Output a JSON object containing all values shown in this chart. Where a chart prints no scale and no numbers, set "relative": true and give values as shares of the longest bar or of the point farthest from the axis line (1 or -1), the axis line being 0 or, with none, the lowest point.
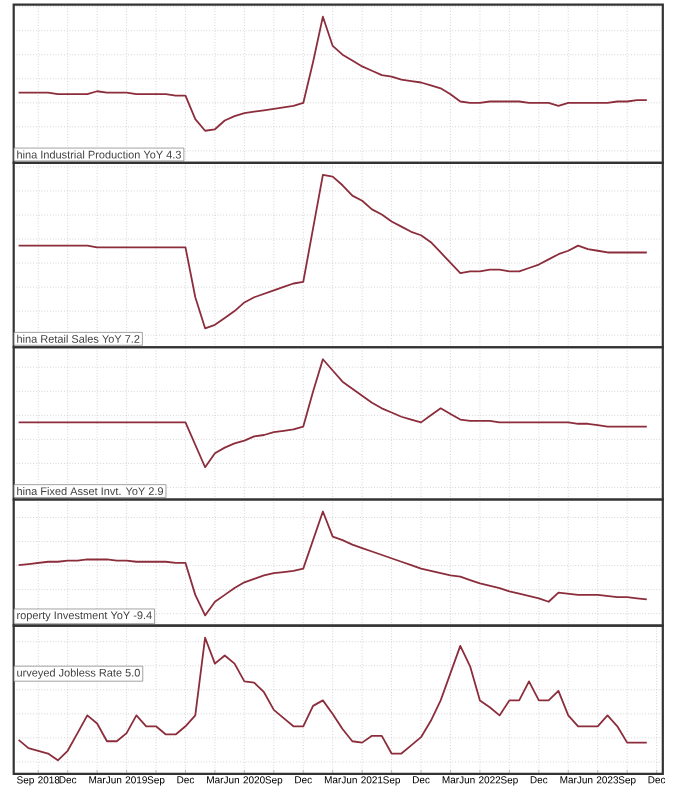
{
  "chart_data": [
    {
      "type": "line",
      "title": "hina Industrial Production YoY 4.3",
      "relative": true,
      "grid": true,
      "categories": [
        null,
        null,
        null,
        null,
        null,
        null,
        null,
        null,
        null,
        null,
        null,
        null,
        null,
        null,
        null,
        null,
        null,
        null,
        null,
        null,
        null,
        null,
        null,
        null,
        null,
        null,
        null,
        null,
        null,
        null,
        null,
        null,
        null,
        null,
        null,
        null,
        null,
        null,
        null,
        null,
        null,
        null,
        null,
        null,
        null,
        null,
        null,
        null,
        null,
        null,
        null,
        null,
        null,
        null,
        null,
        null,
        null,
        null,
        null,
        null,
        null,
        null,
        null,
        null,
        null
      ],
      "series": [
        {
          "color": "#8c2d3c",
          "values": [
            0.48,
            0.48,
            0.48,
            0.48,
            0.47,
            0.47,
            0.47,
            0.47,
            0.49,
            0.48,
            0.48,
            0.48,
            0.47,
            0.47,
            0.47,
            0.47,
            0.46,
            0.46,
            0.3,
            0.22,
            0.23,
            0.29,
            0.32,
            0.34,
            0.35,
            0.36,
            0.37,
            0.38,
            0.39,
            0.41,
            0.69,
            1,
            0.8,
            0.74,
            0.7,
            0.66,
            0.63,
            0.6,
            0.59,
            0.57,
            0.56,
            0.55,
            0.53,
            0.51,
            0.47,
            0.42,
            0.41,
            0.41,
            0.42,
            0.42,
            0.42,
            0.42,
            0.41,
            0.41,
            0.41,
            0.39,
            0.41,
            0.41,
            0.41,
            0.41,
            0.41,
            0.42,
            0.42,
            0.43,
            0.43
          ]
        }
      ]
    },
    {
      "type": "line",
      "title": "hina Retail Sales YoY 7.2",
      "relative": true,
      "grid": true,
      "categories": [
        null,
        null,
        null,
        null,
        null,
        null,
        null,
        null,
        null,
        null,
        null,
        null,
        null,
        null,
        null,
        null,
        null,
        null,
        null,
        null,
        null,
        null,
        null,
        null,
        null,
        null,
        null,
        null,
        null,
        null,
        null,
        null,
        null,
        null,
        null,
        null,
        null,
        null,
        null,
        null,
        null,
        null,
        null,
        null,
        null,
        null,
        null,
        null,
        null,
        null,
        null,
        null,
        null,
        null,
        null,
        null,
        null,
        null,
        null,
        null,
        null,
        null,
        null,
        null,
        null
      ],
      "series": [
        {
          "color": "#8c2d3c",
          "values": [
            0.59,
            0.59,
            0.59,
            0.59,
            0.59,
            0.59,
            0.59,
            0.59,
            0.58,
            0.58,
            0.58,
            0.58,
            0.58,
            0.58,
            0.58,
            0.58,
            0.58,
            0.58,
            0.29,
            0.11,
            0.13,
            0.17,
            0.21,
            0.26,
            0.29,
            0.31,
            0.33,
            0.35,
            0.37,
            0.38,
            0.69,
            1,
            0.99,
            0.94,
            0.88,
            0.85,
            0.8,
            0.77,
            0.73,
            0.7,
            0.67,
            0.65,
            0.61,
            0.55,
            0.49,
            0.43,
            0.44,
            0.44,
            0.45,
            0.45,
            0.44,
            0.44,
            0.46,
            0.48,
            0.51,
            0.54,
            0.56,
            0.59,
            0.57,
            0.56,
            0.55,
            0.55,
            0.55,
            0.55,
            0.55
          ]
        }
      ]
    },
    {
      "type": "line",
      "title": "hina Fixed Asset Invt. YoY 2.9",
      "relative": true,
      "grid": true,
      "categories": [
        null,
        null,
        null,
        null,
        null,
        null,
        null,
        null,
        null,
        null,
        null,
        null,
        null,
        null,
        null,
        null,
        null,
        null,
        null,
        null,
        null,
        null,
        null,
        null,
        null,
        null,
        null,
        null,
        null,
        null,
        null,
        null,
        null,
        null,
        null,
        null,
        null,
        null,
        null,
        null,
        null,
        null,
        null,
        null,
        null,
        null,
        null,
        null,
        null,
        null,
        null,
        null,
        null,
        null,
        null,
        null,
        null,
        null,
        null,
        null,
        null,
        null,
        null,
        null,
        null
      ],
      "series": [
        {
          "color": "#8c2d3c",
          "values": [
            0.55,
            0.55,
            0.55,
            0.55,
            0.55,
            0.55,
            0.55,
            0.55,
            0.55,
            0.55,
            0.55,
            0.55,
            0.55,
            0.55,
            0.55,
            0.55,
            0.55,
            0.55,
            0.39,
            0.23,
            0.33,
            0.37,
            0.4,
            0.42,
            0.45,
            0.46,
            0.48,
            0.49,
            0.5,
            0.52,
            0.77,
            1,
            0.92,
            0.84,
            0.79,
            0.74,
            0.69,
            0.65,
            0.62,
            0.59,
            0.57,
            0.55,
            0.6,
            0.65,
            0.61,
            0.57,
            0.56,
            0.56,
            0.56,
            0.55,
            0.55,
            0.55,
            0.55,
            0.55,
            0.55,
            0.55,
            0.55,
            0.54,
            0.54,
            0.53,
            0.52,
            0.52,
            0.52,
            0.52,
            0.52
          ]
        }
      ]
    },
    {
      "type": "line",
      "title": "roperty Investment YoY -9.4",
      "relative": true,
      "grid": true,
      "categories": [
        null,
        null,
        null,
        null,
        null,
        null,
        null,
        null,
        null,
        null,
        null,
        null,
        null,
        null,
        null,
        null,
        null,
        null,
        null,
        null,
        null,
        null,
        null,
        null,
        null,
        null,
        null,
        null,
        null,
        null,
        null,
        null,
        null,
        null,
        null,
        null,
        null,
        null,
        null,
        null,
        null,
        null,
        null,
        null,
        null,
        null,
        null,
        null,
        null,
        null,
        null,
        null,
        null,
        null,
        null,
        null,
        null,
        null,
        null,
        null,
        null,
        null,
        null,
        null,
        null
      ],
      "series": [
        {
          "color": "#8c2d3c",
          "values": [
            0.53,
            0.54,
            0.55,
            0.56,
            0.56,
            0.57,
            0.57,
            0.58,
            0.58,
            0.58,
            0.57,
            0.57,
            0.56,
            0.56,
            0.56,
            0.56,
            0.55,
            0.55,
            0.27,
            0.09,
            0.21,
            0.27,
            0.33,
            0.38,
            0.41,
            0.44,
            0.46,
            0.47,
            0.48,
            0.5,
            0.75,
            1,
            0.78,
            0.75,
            0.71,
            0.68,
            0.65,
            0.62,
            0.59,
            0.56,
            0.53,
            0.5,
            0.48,
            0.46,
            0.44,
            0.43,
            0.4,
            0.37,
            0.35,
            0.33,
            0.3,
            0.28,
            0.26,
            0.24,
            0.21,
            0.29,
            0.28,
            0.27,
            0.27,
            0.27,
            0.26,
            0.25,
            0.25,
            0.24,
            0.23
          ]
        }
      ]
    },
    {
      "type": "line",
      "title": "urveyed Jobless Rate 5.0",
      "relative": true,
      "grid": true,
      "xlim": [
        "2018-06-16",
        "2023-12-20"
      ],
      "xticks": [
        {
          "value": "2018-09",
          "label": "Sep 2018"
        },
        {
          "value": "2018-12",
          "label": "Dec"
        },
        {
          "value": "2019-03",
          "label": "Mar"
        },
        {
          "value": "2019-06",
          "label": "Jun 2019"
        },
        {
          "value": "2019-09",
          "label": "Sep"
        },
        {
          "value": "2019-12",
          "label": "Dec"
        },
        {
          "value": "2020-03",
          "label": "Mar"
        },
        {
          "value": "2020-06",
          "label": "Jun 2020"
        },
        {
          "value": "2020-09",
          "label": "Sep"
        },
        {
          "value": "2020-12",
          "label": "Dec"
        },
        {
          "value": "2021-03",
          "label": "Mar"
        },
        {
          "value": "2021-06",
          "label": "Jun 2021"
        },
        {
          "value": "2021-09",
          "label": "Sep"
        },
        {
          "value": "2021-12",
          "label": "Dec"
        },
        {
          "value": "2022-03",
          "label": "Mar"
        },
        {
          "value": "2022-06",
          "label": "Jun 2022"
        },
        {
          "value": "2022-09",
          "label": "Sep"
        },
        {
          "value": "2022-12",
          "label": "Dec"
        },
        {
          "value": "2023-03",
          "label": "Mar"
        },
        {
          "value": "2023-06",
          "label": "Jun 2023"
        },
        {
          "value": "2023-09",
          "label": "Sep"
        },
        {
          "value": "2023-12",
          "label": "Dec"
        }
      ],
      "x": [
        "2018-07",
        "2018-08",
        "2018-09",
        "2018-10",
        "2018-11",
        "2018-12",
        "2019-01",
        "2019-02",
        "2019-03",
        "2019-04",
        "2019-05",
        "2019-06",
        "2019-07",
        "2019-08",
        "2019-09",
        "2019-10",
        "2019-11",
        "2019-12",
        "2020-01",
        "2020-02",
        "2020-03",
        "2020-04",
        "2020-05",
        "2020-06",
        "2020-07",
        "2020-08",
        "2020-09",
        "2020-10",
        "2020-11",
        "2020-12",
        "2021-01",
        "2021-02",
        "2021-03",
        "2021-04",
        "2021-05",
        "2021-06",
        "2021-07",
        "2021-08",
        "2021-09",
        "2021-10",
        "2021-11",
        "2021-12",
        "2022-01",
        "2022-02",
        "2022-03",
        "2022-04",
        "2022-05",
        "2022-06",
        "2022-07",
        "2022-08",
        "2022-09",
        "2022-10",
        "2022-11",
        "2022-12",
        "2023-01",
        "2023-02",
        "2023-03",
        "2023-04",
        "2023-05",
        "2023-06",
        "2023-07",
        "2023-08",
        "2023-09",
        "2023-10",
        "2023-11"
      ],
      "series": [
        {
          "color": "#8c2d3c",
          "values": [
            0.25,
            0.19,
            0.17,
            0.15,
            0.1,
            0.17,
            0.3,
            0.43,
            0.37,
            0.24,
            0.24,
            0.3,
            0.43,
            0.35,
            0.35,
            0.29,
            0.29,
            0.35,
            0.43,
            1,
            0.81,
            0.87,
            0.81,
            0.68,
            0.67,
            0.6,
            0.47,
            0.41,
            0.35,
            0.35,
            0.5,
            0.54,
            0.44,
            0.33,
            0.24,
            0.23,
            0.28,
            0.28,
            0.15,
            0.15,
            0.21,
            0.27,
            0.39,
            0.54,
            0.74,
            0.94,
            0.79,
            0.54,
            0.49,
            0.43,
            0.54,
            0.54,
            0.68,
            0.54,
            0.54,
            0.61,
            0.43,
            0.35,
            0.35,
            0.35,
            0.43,
            0.35,
            0.23,
            0.23,
            0.23
          ]
        }
      ]
    }
  ]
}
